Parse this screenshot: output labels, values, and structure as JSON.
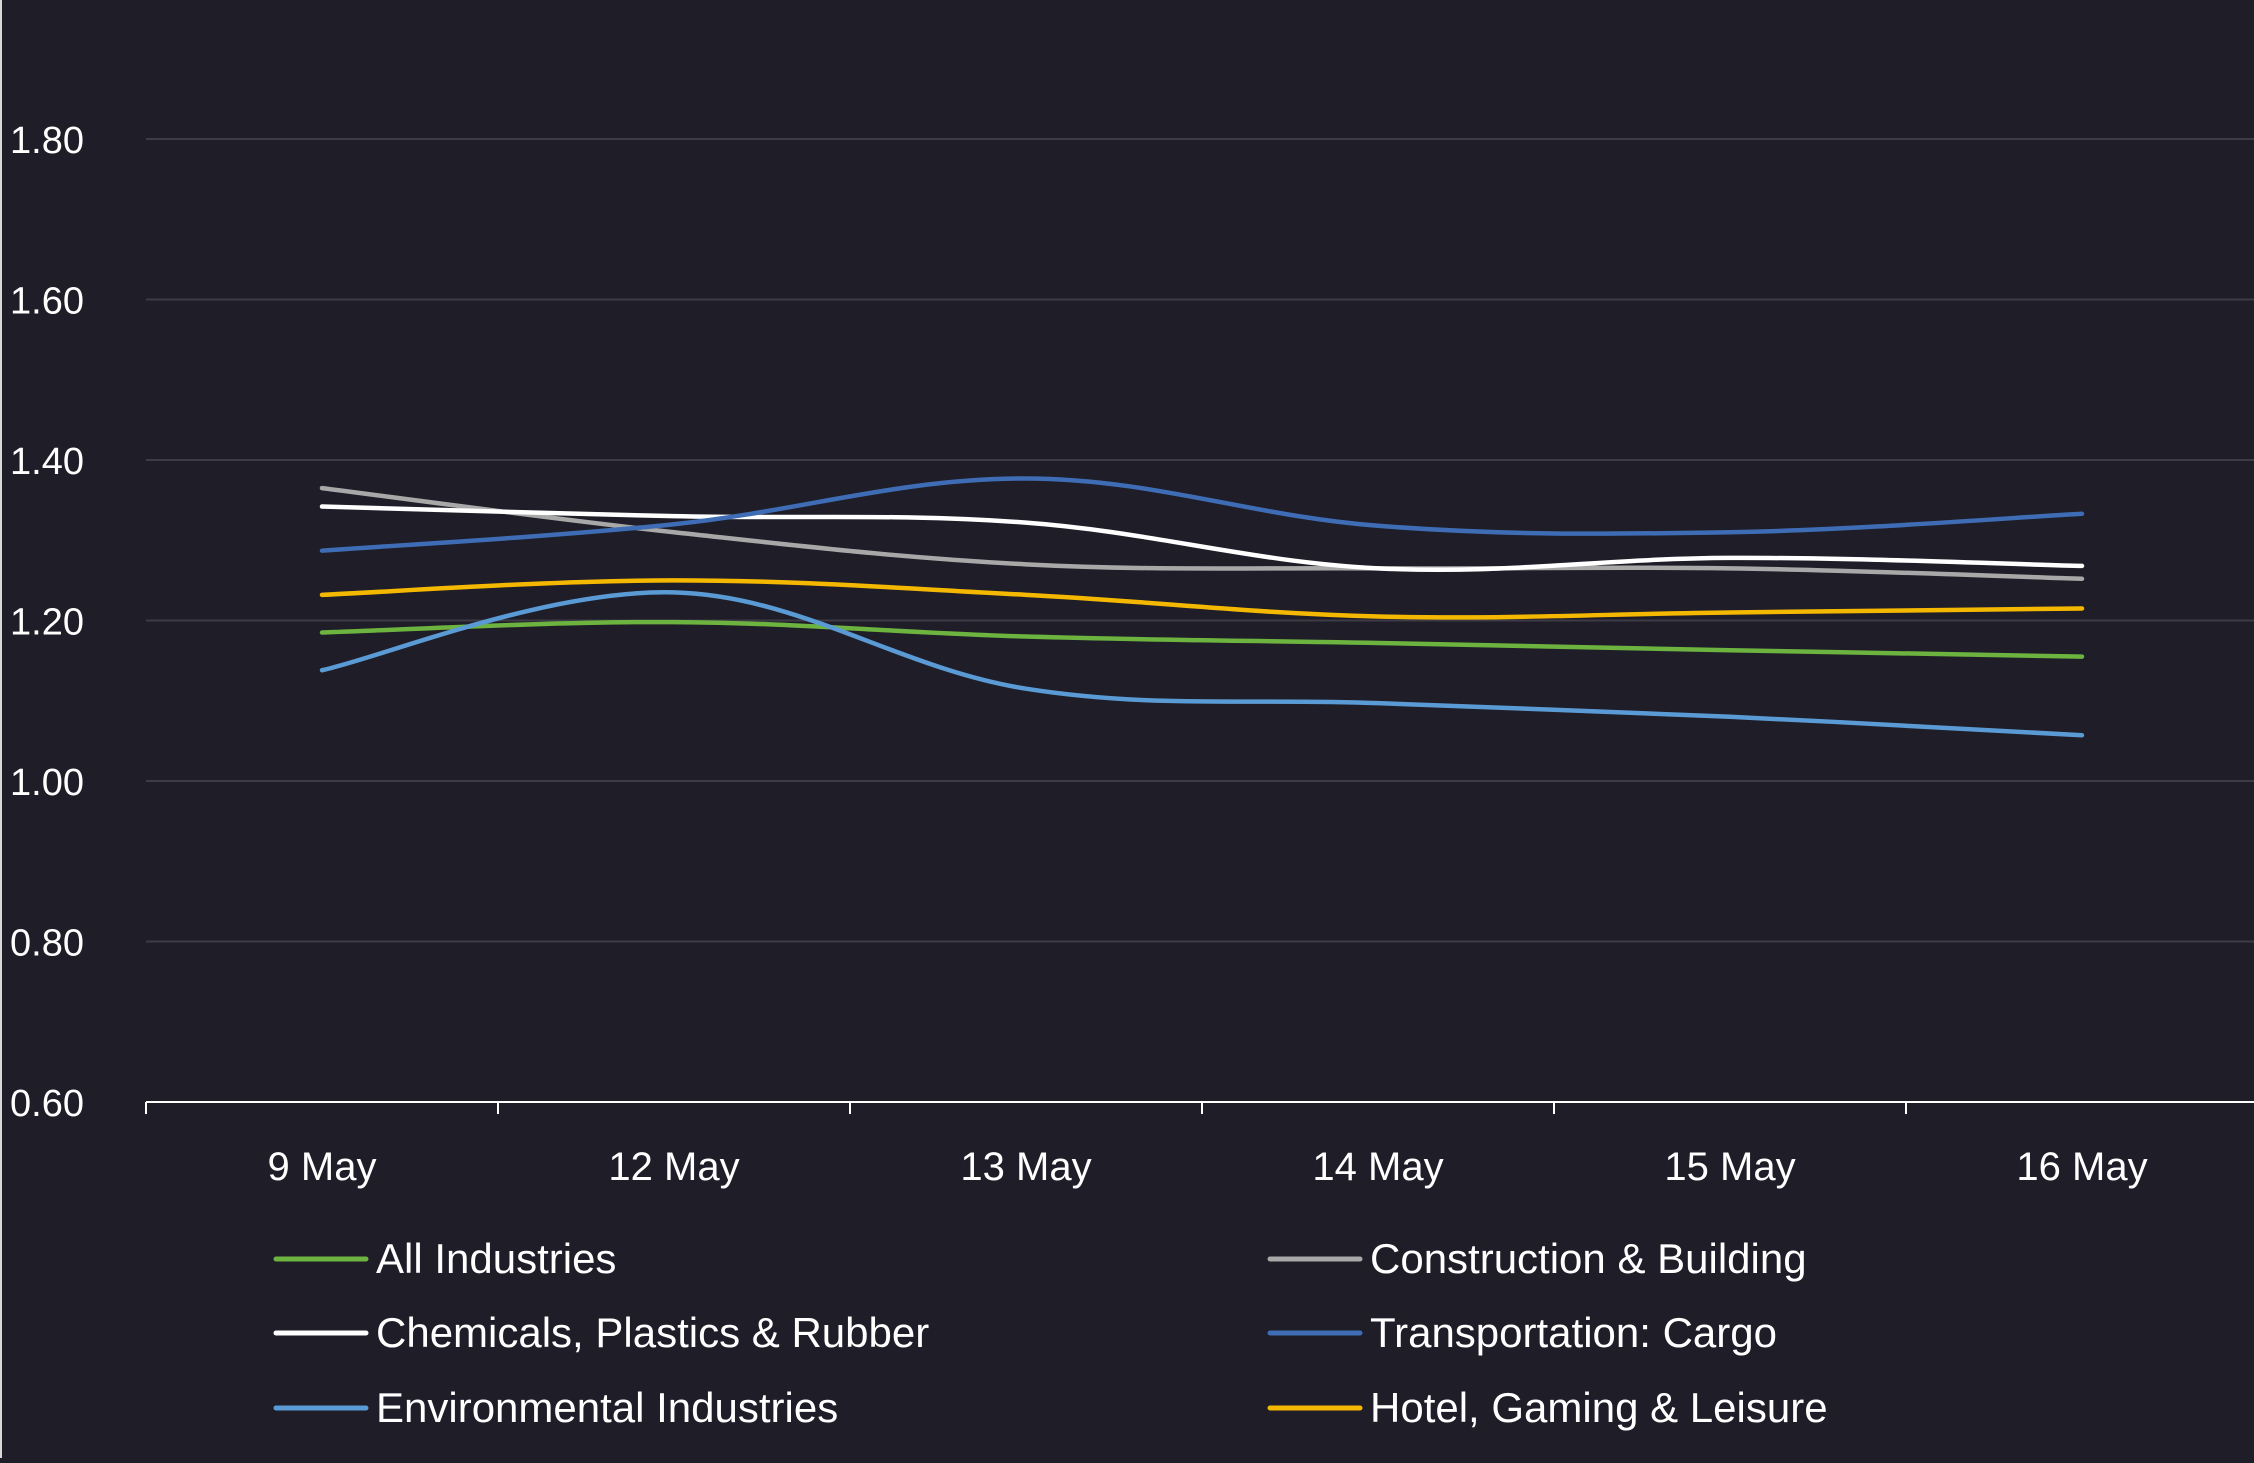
{
  "chart_data": {
    "type": "line",
    "title": "",
    "xlabel": "",
    "ylabel": "",
    "ylim": [
      0.6,
      1.9
    ],
    "yticks": [
      "0.60",
      "0.80",
      "1.00",
      "1.20",
      "1.40",
      "1.60",
      "1.80"
    ],
    "categories": [
      "9 May",
      "12 May",
      "13 May",
      "14 May",
      "15 May",
      "16 May"
    ],
    "grid": true,
    "legend_position": "bottom",
    "series": [
      {
        "name": "All Industries",
        "color": "#6db33f",
        "values": [
          1.185,
          1.198,
          1.18,
          1.172,
          1.163,
          1.155
        ]
      },
      {
        "name": "Construction & Building",
        "color": "#a8a8a8",
        "values": [
          1.365,
          1.31,
          1.27,
          1.265,
          1.265,
          1.252
        ]
      },
      {
        "name": "Chemicals, Plastics & Rubber",
        "color": "#ffffff",
        "values": [
          1.342,
          1.33,
          1.322,
          1.265,
          1.278,
          1.268
        ]
      },
      {
        "name": "Transportation: Cargo",
        "color": "#3f6db5",
        "values": [
          1.287,
          1.32,
          1.377,
          1.318,
          1.31,
          1.333
        ]
      },
      {
        "name": "Environmental Industries",
        "color": "#5b9bd5",
        "values": [
          1.138,
          1.235,
          1.115,
          1.097,
          1.08,
          1.057
        ]
      },
      {
        "name": "Hotel, Gaming & Leisure",
        "color": "#f5b800",
        "values": [
          1.232,
          1.25,
          1.232,
          1.205,
          1.21,
          1.215
        ]
      }
    ]
  },
  "colors": {
    "background": "#1e1d28",
    "grid": "#3c3b46",
    "axis": "#ffffff",
    "text": "#ffffff"
  }
}
